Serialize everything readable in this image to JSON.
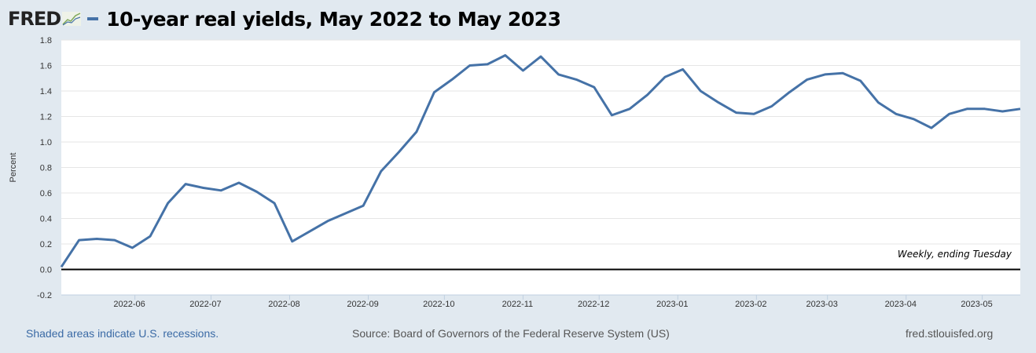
{
  "header": {
    "logo": "FRED",
    "title": "10-year real yields, May 2022 to May 2023"
  },
  "footer": {
    "recession_note": "Shaded areas indicate U.S. recessions.",
    "source": "Source: Board of Governors of the Federal Reserve System (US)",
    "site": "fred.stlouisfed.org"
  },
  "colors": {
    "series": "#4572a7",
    "background": "#e1e9f0",
    "zero_line": "#000000"
  },
  "chart_data": {
    "type": "line",
    "title": "10-year real yields, May 2022 to May 2023",
    "ylabel": "Percent",
    "xlabel": "",
    "annotation": "Weekly, ending Tuesday",
    "ylim": [
      -0.2,
      1.8
    ],
    "yticks": [
      "1.8",
      "1.6",
      "1.4",
      "1.2",
      "1.0",
      "0.8",
      "0.6",
      "0.4",
      "0.2",
      "0.0",
      "-0.2"
    ],
    "xticks": [
      "2022-06",
      "2022-07",
      "2022-08",
      "2022-09",
      "2022-10",
      "2022-11",
      "2022-12",
      "2023-01",
      "2023-02",
      "2023-03",
      "2023-04",
      "2023-05"
    ],
    "grid": true,
    "start_date": "2022-05-03",
    "frequency_days": 7,
    "series": [
      {
        "name": "10-year real yields",
        "values": [
          0.02,
          0.23,
          0.24,
          0.23,
          0.17,
          0.26,
          0.52,
          0.67,
          0.64,
          0.62,
          0.68,
          0.61,
          0.52,
          0.22,
          0.3,
          0.38,
          0.44,
          0.5,
          0.77,
          0.92,
          1.08,
          1.39,
          1.49,
          1.6,
          1.61,
          1.68,
          1.56,
          1.67,
          1.53,
          1.49,
          1.43,
          1.21,
          1.26,
          1.37,
          1.51,
          1.57,
          1.4,
          1.31,
          1.23,
          1.22,
          1.28,
          1.39,
          1.49,
          1.53,
          1.54,
          1.48,
          1.31,
          1.22,
          1.18,
          1.11,
          1.22,
          1.26,
          1.26,
          1.24,
          1.26
        ]
      }
    ]
  }
}
